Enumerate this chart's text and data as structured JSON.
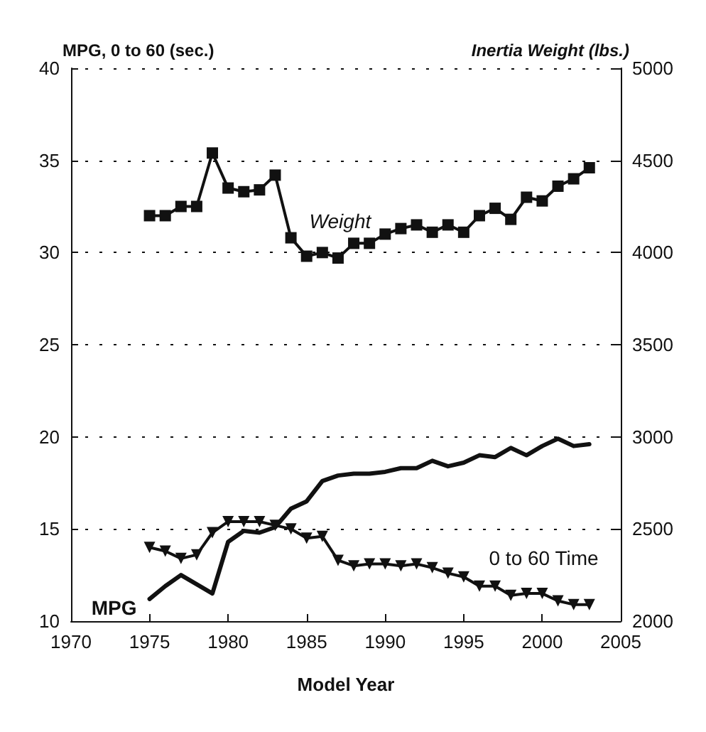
{
  "chart_data": {
    "type": "line",
    "xlabel": "Model Year",
    "ylabel": "MPG, 0 to 60 (sec.)",
    "y2label": "Inertia Weight (lbs.)",
    "x": [
      1975,
      1976,
      1977,
      1978,
      1979,
      1980,
      1981,
      1982,
      1983,
      1984,
      1985,
      1986,
      1987,
      1988,
      1989,
      1990,
      1991,
      1992,
      1993,
      1994,
      1995,
      1996,
      1997,
      1998,
      1999,
      2000,
      2001,
      2002,
      2003
    ],
    "series": [
      {
        "name": "Weight",
        "color": "#111111",
        "axis": "y2",
        "marker": "square",
        "values": [
          4200,
          4200,
          4250,
          4250,
          4540,
          4350,
          4330,
          4340,
          4420,
          4080,
          3980,
          4000,
          3970,
          4050,
          4050,
          4100,
          4130,
          4150,
          4110,
          4150,
          4110,
          4200,
          4240,
          4180,
          4300,
          4280,
          4360,
          4400,
          4460
        ]
      },
      {
        "name": "MPG",
        "color": "#111111",
        "marker": "none",
        "values": [
          11.2,
          11.9,
          12.5,
          12.0,
          11.5,
          14.3,
          14.9,
          14.8,
          15.1,
          16.1,
          16.5,
          17.6,
          17.9,
          18.0,
          18.0,
          18.1,
          18.3,
          18.3,
          18.7,
          18.4,
          18.6,
          19.0,
          18.9,
          19.4,
          19.0,
          19.5,
          19.9,
          19.5,
          19.6
        ]
      },
      {
        "name": "0 to 60 Time",
        "color": "#111111",
        "marker": "triangle",
        "values": [
          14.0,
          13.8,
          13.4,
          13.6,
          14.8,
          15.4,
          15.4,
          15.4,
          15.2,
          15.0,
          14.5,
          14.6,
          13.3,
          13.0,
          13.1,
          13.1,
          13.0,
          13.1,
          12.9,
          12.6,
          12.4,
          11.9,
          11.9,
          11.4,
          11.5,
          11.5,
          11.1,
          10.9,
          10.9
        ]
      }
    ],
    "xlim": [
      1970,
      2005
    ],
    "xticks": [
      1970,
      1975,
      1980,
      1985,
      1990,
      1995,
      2000,
      2005
    ],
    "ylim": [
      10,
      40
    ],
    "yticks": [
      10,
      15,
      20,
      25,
      30,
      35,
      40
    ],
    "y2lim": [
      2000,
      5000
    ],
    "y2ticks": [
      2000,
      2500,
      3000,
      3500,
      4000,
      4500,
      5000
    ],
    "grid": "y",
    "legend": false
  }
}
